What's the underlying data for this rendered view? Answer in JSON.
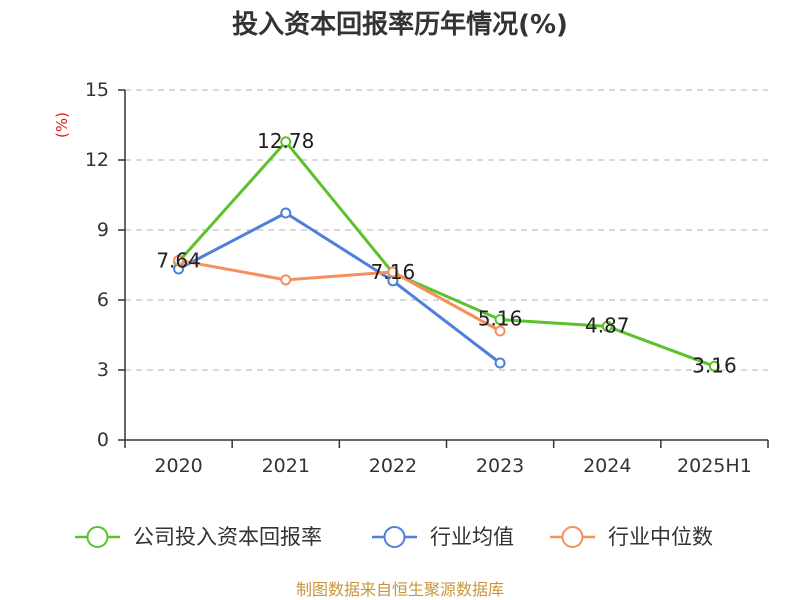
{
  "chart_data": {
    "type": "line",
    "title": "投入资本回报率历年情况(%)",
    "xlabel": "",
    "ylabel": "(%)",
    "categories": [
      "2020",
      "2021",
      "2022",
      "2023",
      "2024",
      "2025H1"
    ],
    "ylim": [
      0,
      15
    ],
    "yticks": [
      0,
      3,
      6,
      9,
      12,
      15
    ],
    "grid": true,
    "legend": "bottom",
    "series": [
      {
        "name": "公司投入资本回报率",
        "color": "#5cc12b",
        "data_labels": true,
        "values": [
          7.64,
          12.78,
          7.16,
          5.16,
          4.87,
          3.16
        ]
      },
      {
        "name": "行业均值",
        "color": "#4f7fdb",
        "data_labels": false,
        "values": [
          7.33,
          9.73,
          6.82,
          3.3,
          null,
          null
        ]
      },
      {
        "name": "行业中位数",
        "color": "#f5905c",
        "data_labels": false,
        "values": [
          7.7,
          6.86,
          7.2,
          4.67,
          null,
          null
        ]
      }
    ]
  },
  "footer": "制图数据来自恒生聚源数据库",
  "colors": {
    "ylabel": "#e01e1e",
    "footer": "#c8963c",
    "grid": "#cccccc",
    "axis": "#333333"
  }
}
